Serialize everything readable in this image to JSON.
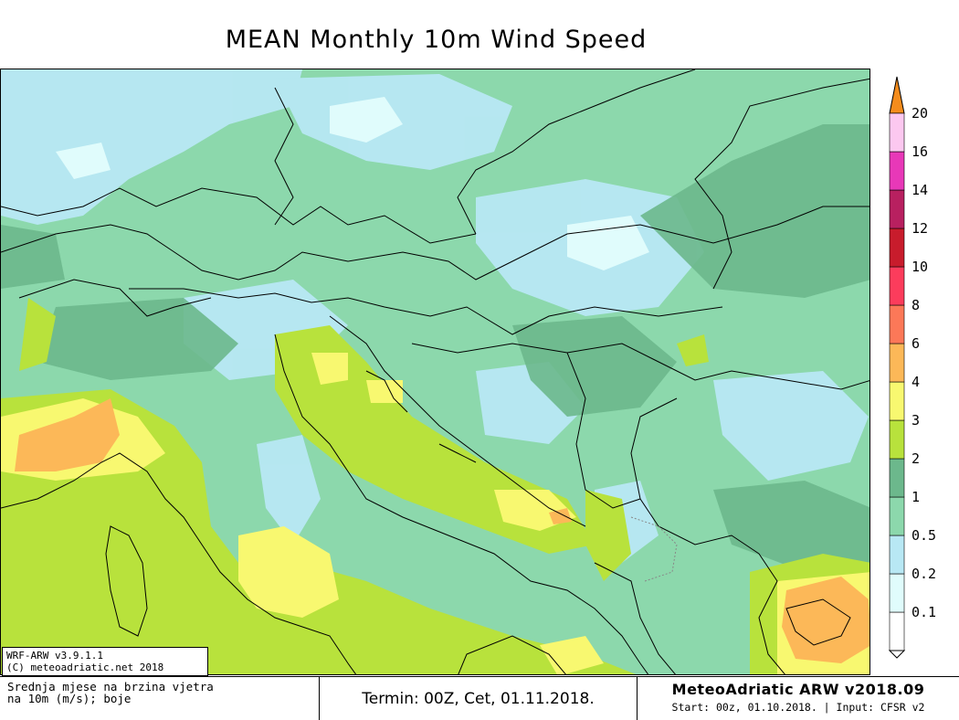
{
  "title": "MEAN Monthly 10m Wind Speed",
  "model": {
    "version": "WRF-ARW v3.9.1.1",
    "copyright": "(C) meteoadriatic.net 2018"
  },
  "footer": {
    "description_line1": "Srednja mjese  na brzina vjetra",
    "description_line2": "na 10m (m/s); boje",
    "termin": "Termin: 00Z, Cet, 01.11.2018.",
    "brand": "MeteoAdriatic ARW v2018.09",
    "start_info": "Start: 00z, 01.10.2018. | Input: CFSR v2"
  },
  "legend": {
    "unit": "m/s",
    "levels": [
      {
        "label": "0.1",
        "color": "#ffffff"
      },
      {
        "label": "0.2",
        "color": "#e0fcfc"
      },
      {
        "label": "0.5",
        "color": "#b8e8f4"
      },
      {
        "label": "1",
        "color": "#8cd8ac"
      },
      {
        "label": "2",
        "color": "#6cb88c"
      },
      {
        "label": "3",
        "color": "#b8e23c"
      },
      {
        "label": "4",
        "color": "#f8f870"
      },
      {
        "label": "6",
        "color": "#fcb858"
      },
      {
        "label": "8",
        "color": "#fc7858"
      },
      {
        "label": "10",
        "color": "#fc3c5c"
      },
      {
        "label": "12",
        "color": "#c81c2c"
      },
      {
        "label": "14",
        "color": "#b82060"
      },
      {
        "label": "16",
        "color": "#e838b8"
      },
      {
        "label": "20",
        "color": "#fcc8f0"
      }
    ],
    "over_color": "#f48c1c"
  }
}
